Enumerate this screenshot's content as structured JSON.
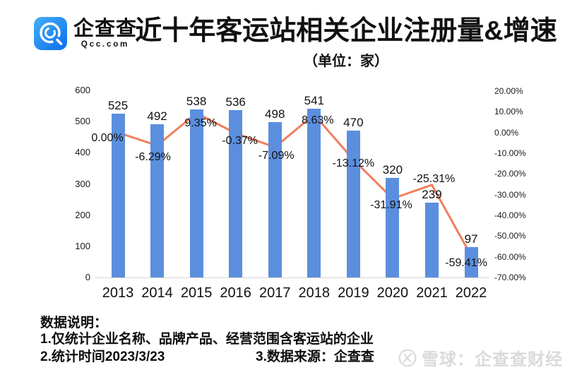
{
  "brand": {
    "name": "企查查",
    "domain": "Qcc.com"
  },
  "header": {
    "title": "近十年客运站相关企业注册量&增速",
    "subtitle": "（单位：家）"
  },
  "chart_data": {
    "type": "bar",
    "title": "近十年客运站相关企业注册量&增速",
    "subtitle": "（单位：家）",
    "categories": [
      "2013",
      "2014",
      "2015",
      "2016",
      "2017",
      "2018",
      "2019",
      "2020",
      "2021",
      "2022"
    ],
    "series": [
      {
        "name": "注册量",
        "type": "bar",
        "axis": "left",
        "color": "#5B8FDE",
        "values": [
          525,
          492,
          538,
          536,
          498,
          541,
          470,
          320,
          239,
          97
        ]
      },
      {
        "name": "增速",
        "type": "line",
        "axis": "right",
        "color": "#F17E5D",
        "values": [
          0.0,
          -6.29,
          9.35,
          -0.37,
          -7.09,
          8.63,
          -13.12,
          -31.91,
          -25.31,
          -59.41
        ],
        "labels": [
          "0.00%",
          "-6.29%",
          "9.35%",
          "-0.37%",
          "-7.09%",
          "8.63%",
          "-13.12%",
          "-31.91%",
          "-25.31%",
          "-59.41%"
        ]
      }
    ],
    "left_axis": {
      "min": 0,
      "max": 600,
      "ticks": [
        "600",
        "500",
        "400",
        "300",
        "200",
        "100",
        "0"
      ]
    },
    "right_axis": {
      "min": -70,
      "max": 20,
      "ticks": [
        "20.00%",
        "10.00%",
        "0.00%",
        "-10.00%",
        "-20.00%",
        "-30.00%",
        "-40.00%",
        "-50.00%",
        "-60.00%",
        "-70.00%"
      ]
    },
    "grid": false,
    "legend": "none"
  },
  "footnote": {
    "heading": "数据说明：",
    "note1": "1.仅统计企业名称、品牌产品、经营范围含客运站的企业",
    "note2": "2.统计时间2023/3/23",
    "note3": "3.数据来源：企查查"
  },
  "watermark": {
    "text": "雪球：企查查财经"
  }
}
